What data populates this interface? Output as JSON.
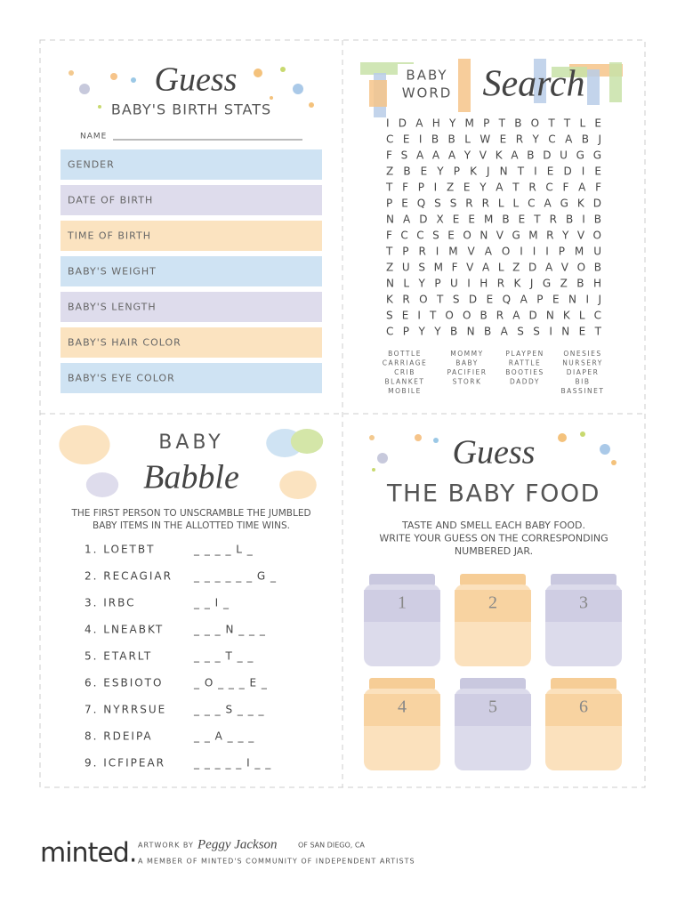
{
  "birth_stats": {
    "title_script": "Guess",
    "title": "BABY'S BIRTH STATS",
    "name_label": "NAME",
    "fields": [
      "GENDER",
      "DATE OF BIRTH",
      "TIME OF BIRTH",
      "BABY'S WEIGHT",
      "BABY'S LENGTH",
      "BABY'S HAIR COLOR",
      "BABY'S EYE COLOR"
    ]
  },
  "word_search": {
    "title_small": [
      "BABY",
      "WORD"
    ],
    "title_script": "Search",
    "grid": [
      "I D A H Y M P T B O T T L E",
      "C E I B B L W E R Y C A B J",
      "F S A A A Y V K A B D U G G",
      "Z B E Y P K J N T I E D I E",
      "T F P I Z E Y A T R C F A F",
      "P E Q S S R R L L C A G K D",
      "N A D X E E M B E T R B I B",
      "F C C S E O N V G M R Y V O",
      "T P R I M V A O I I I P M U",
      "Z U S M F V A L Z D A V O B",
      "N L Y P U I H R K J G Z B H",
      "K R O T S D E Q A P E N I J",
      "S E I T O O B R A D N K L C",
      "C P Y Y B N B A S S I N E T"
    ],
    "word_columns": [
      [
        "BOTTLE",
        "CARRIAGE",
        "CRIB",
        "BLANKET",
        "MOBILE"
      ],
      [
        "MOMMY",
        "BABY",
        "PACIFIER",
        "STORK"
      ],
      [
        "PLAYPEN",
        "RATTLE",
        "BOOTIES",
        "DADDY"
      ],
      [
        "ONESIES",
        "NURSERY",
        "DIAPER",
        "BIB",
        "BASSINET"
      ]
    ]
  },
  "babble": {
    "title": "BABY",
    "title_script": "Babble",
    "intro": [
      "THE FIRST PERSON TO UNSCRAMBLE THE JUMBLED",
      "BABY ITEMS IN THE ALLOTTED TIME WINS."
    ],
    "items": [
      {
        "clue": "1. LOETBT",
        "blank": "_ _ _ _ L _"
      },
      {
        "clue": "2. RECAGIAR",
        "blank": "_ _ _ _ _ _ G _"
      },
      {
        "clue": "3. IRBC",
        "blank": "_ _ I _"
      },
      {
        "clue": "4. LNEABKT",
        "blank": "_ _ _ N _ _ _"
      },
      {
        "clue": "5. ETARLT",
        "blank": "_ _ _ T _ _"
      },
      {
        "clue": "6. ESBIOTO",
        "blank": "_ O _ _ _ E _"
      },
      {
        "clue": "7. NYRRSUE",
        "blank": "_ _ _ S _ _ _"
      },
      {
        "clue": "8. RDEIPA",
        "blank": "_ _ A _ _ _"
      },
      {
        "clue": "9. ICFIPEAR",
        "blank": "_ _ _ _ _ I _ _"
      }
    ]
  },
  "baby_food": {
    "title_script": "Guess",
    "title": "THE BABY FOOD",
    "instructions": [
      "TASTE AND SMELL EACH BABY FOOD.",
      "WRITE YOUR GUESS ON THE CORRESPONDING",
      "NUMBERED JAR."
    ],
    "jars": [
      "1",
      "2",
      "3",
      "4",
      "5",
      "6"
    ]
  },
  "footer": {
    "brand": "minted.",
    "artwork_by": "ARTWORK BY",
    "artist": "Peggy Jackson",
    "location": "OF SAN DIEGO, CA",
    "member": "A MEMBER OF MINTED'S COMMUNITY OF INDEPENDENT ARTISTS"
  }
}
